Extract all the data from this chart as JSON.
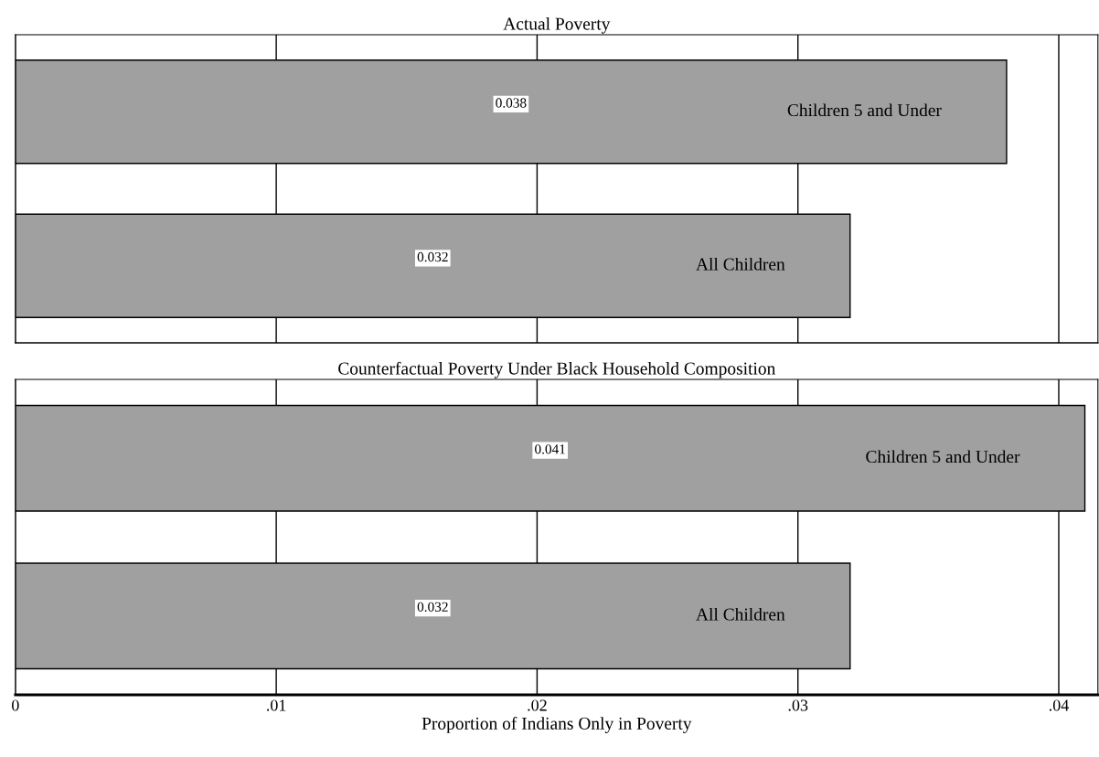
{
  "chart_data": [
    {
      "type": "bar",
      "orientation": "horizontal",
      "title": "Actual Poverty",
      "categories": [
        "Children 5 and Under",
        "All Children"
      ],
      "values": [
        0.038,
        0.032
      ],
      "color": "#a0a0a0",
      "data_labels": true,
      "xlim": [
        0,
        0.0415
      ],
      "xticks": [
        {
          "value": 0,
          "label": null
        },
        {
          "value": 0.01,
          "label": null
        },
        {
          "value": 0.02,
          "label": null
        },
        {
          "value": 0.03,
          "label": null
        },
        {
          "value": 0.04,
          "label": null
        }
      ],
      "grid": "x",
      "tick_labels": false
    },
    {
      "type": "bar",
      "orientation": "horizontal",
      "title": "Counterfactual Poverty Under Black Household Composition",
      "categories": [
        "Children 5 and Under",
        "All Children"
      ],
      "values": [
        0.041,
        0.032
      ],
      "color": "#a0a0a0",
      "data_labels": true,
      "xlim": [
        0,
        0.0415
      ],
      "xticks": [
        0,
        {
          "value": 0.01,
          "label": ".01"
        },
        {
          "value": 0.02,
          "label": ".02"
        },
        {
          "value": 0.03,
          "label": ".03"
        },
        {
          "value": 0.04,
          "label": ".04"
        }
      ],
      "grid": "x",
      "tick_labels": "x",
      "xlabel": "Proportion of Indians Only in Poverty"
    }
  ]
}
